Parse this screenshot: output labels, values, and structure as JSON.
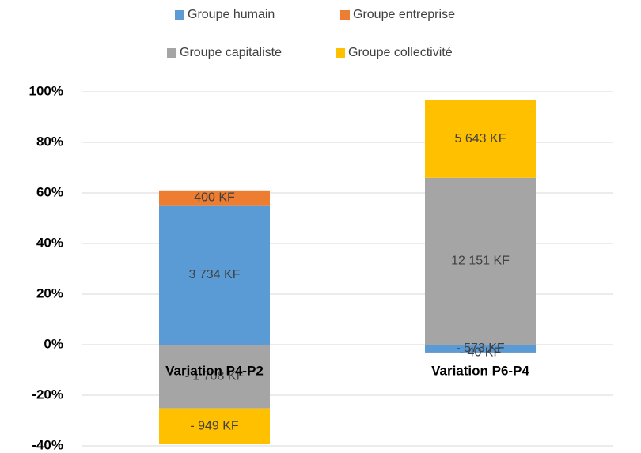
{
  "chart_data": {
    "type": "bar",
    "stacked": true,
    "categories": [
      "Variation P4-P2",
      "Variation P6-P4"
    ],
    "series": [
      {
        "name": "Groupe humain",
        "color": "#5b9bd5",
        "values": [
          55.1,
          -3.1
        ],
        "value_labels": [
          "3 734 KF",
          "- 573 KF"
        ]
      },
      {
        "name": "Groupe entreprise",
        "color": "#ed7d31",
        "values": [
          5.9,
          -0.2
        ],
        "value_labels": [
          "400 KF",
          "- 40 KF"
        ]
      },
      {
        "name": "Groupe capitaliste",
        "color": "#a5a5a5",
        "values": [
          -25.2,
          66.0
        ],
        "value_labels": [
          "- 1 708 KF",
          "12 151 KF"
        ]
      },
      {
        "name": "Groupe collectivité",
        "color": "#ffc000",
        "values": [
          -14.0,
          30.6
        ],
        "value_labels": [
          "- 949 KF",
          "5 643 KF"
        ]
      }
    ],
    "ylim": [
      -40,
      100
    ],
    "yticks": [
      {
        "value": -40,
        "label": "-40%"
      },
      {
        "value": -20,
        "label": "-20%"
      },
      {
        "value": 0,
        "label": "0%"
      },
      {
        "value": 20,
        "label": "20%"
      },
      {
        "value": 40,
        "label": "40%"
      },
      {
        "value": 60,
        "label": "60%"
      },
      {
        "value": 80,
        "label": "80%"
      },
      {
        "value": 100,
        "label": "100%"
      }
    ],
    "grid": true,
    "legend": "top"
  }
}
